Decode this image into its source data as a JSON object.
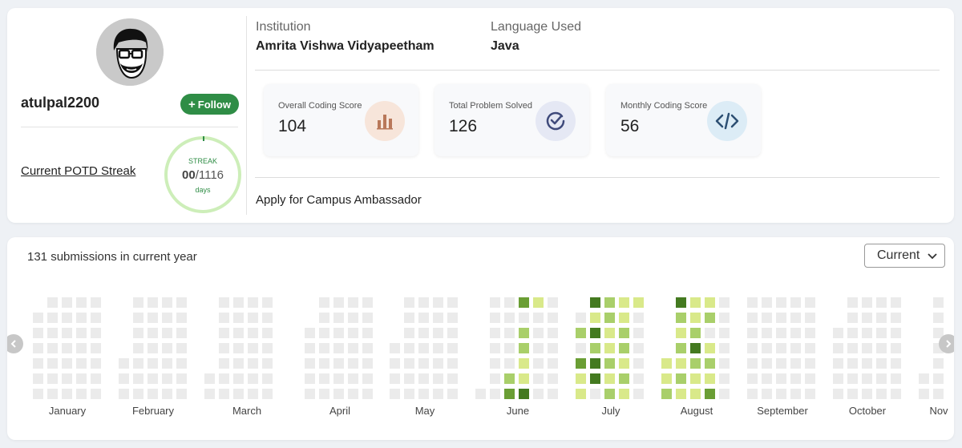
{
  "profile": {
    "username": "atulpal2200",
    "follow_label": "Follow",
    "potd_link": "Current POTD Streak",
    "streak": {
      "label": "STREAK",
      "current": "00",
      "total": "/1116",
      "unit": "days"
    }
  },
  "info": {
    "institution_label": "Institution",
    "institution_value": "Amrita Vishwa Vidyapeetham",
    "language_label": "Language Used",
    "language_value": "Java"
  },
  "stats": [
    {
      "title": "Overall Coding Score",
      "value": "104",
      "icon": "bar-chart-icon",
      "icon_bg": "#f7e5da",
      "icon_color": "#b9785a"
    },
    {
      "title": "Total Problem Solved",
      "value": "126",
      "icon": "check-circle-icon",
      "icon_bg": "#e5e8f4",
      "icon_color": "#3f4a7b"
    },
    {
      "title": "Monthly Coding Score",
      "value": "56",
      "icon": "code-icon",
      "icon_bg": "#dcecf6",
      "icon_color": "#2c4f73"
    }
  ],
  "campus_link": "Apply for Campus Ambassador",
  "submissions": {
    "count_text": "131 submissions in current year",
    "year_select": "Current",
    "months": [
      "January",
      "February",
      "March",
      "April",
      "May",
      "June",
      "July",
      "August",
      "September",
      "October",
      "Nov"
    ],
    "colors": {
      "empty": "#ebebeb",
      "level1": "#d9e98a",
      "level2": "#a9cf6a",
      "level3": "#6a9e34",
      "level4": "#447a20"
    }
  }
}
